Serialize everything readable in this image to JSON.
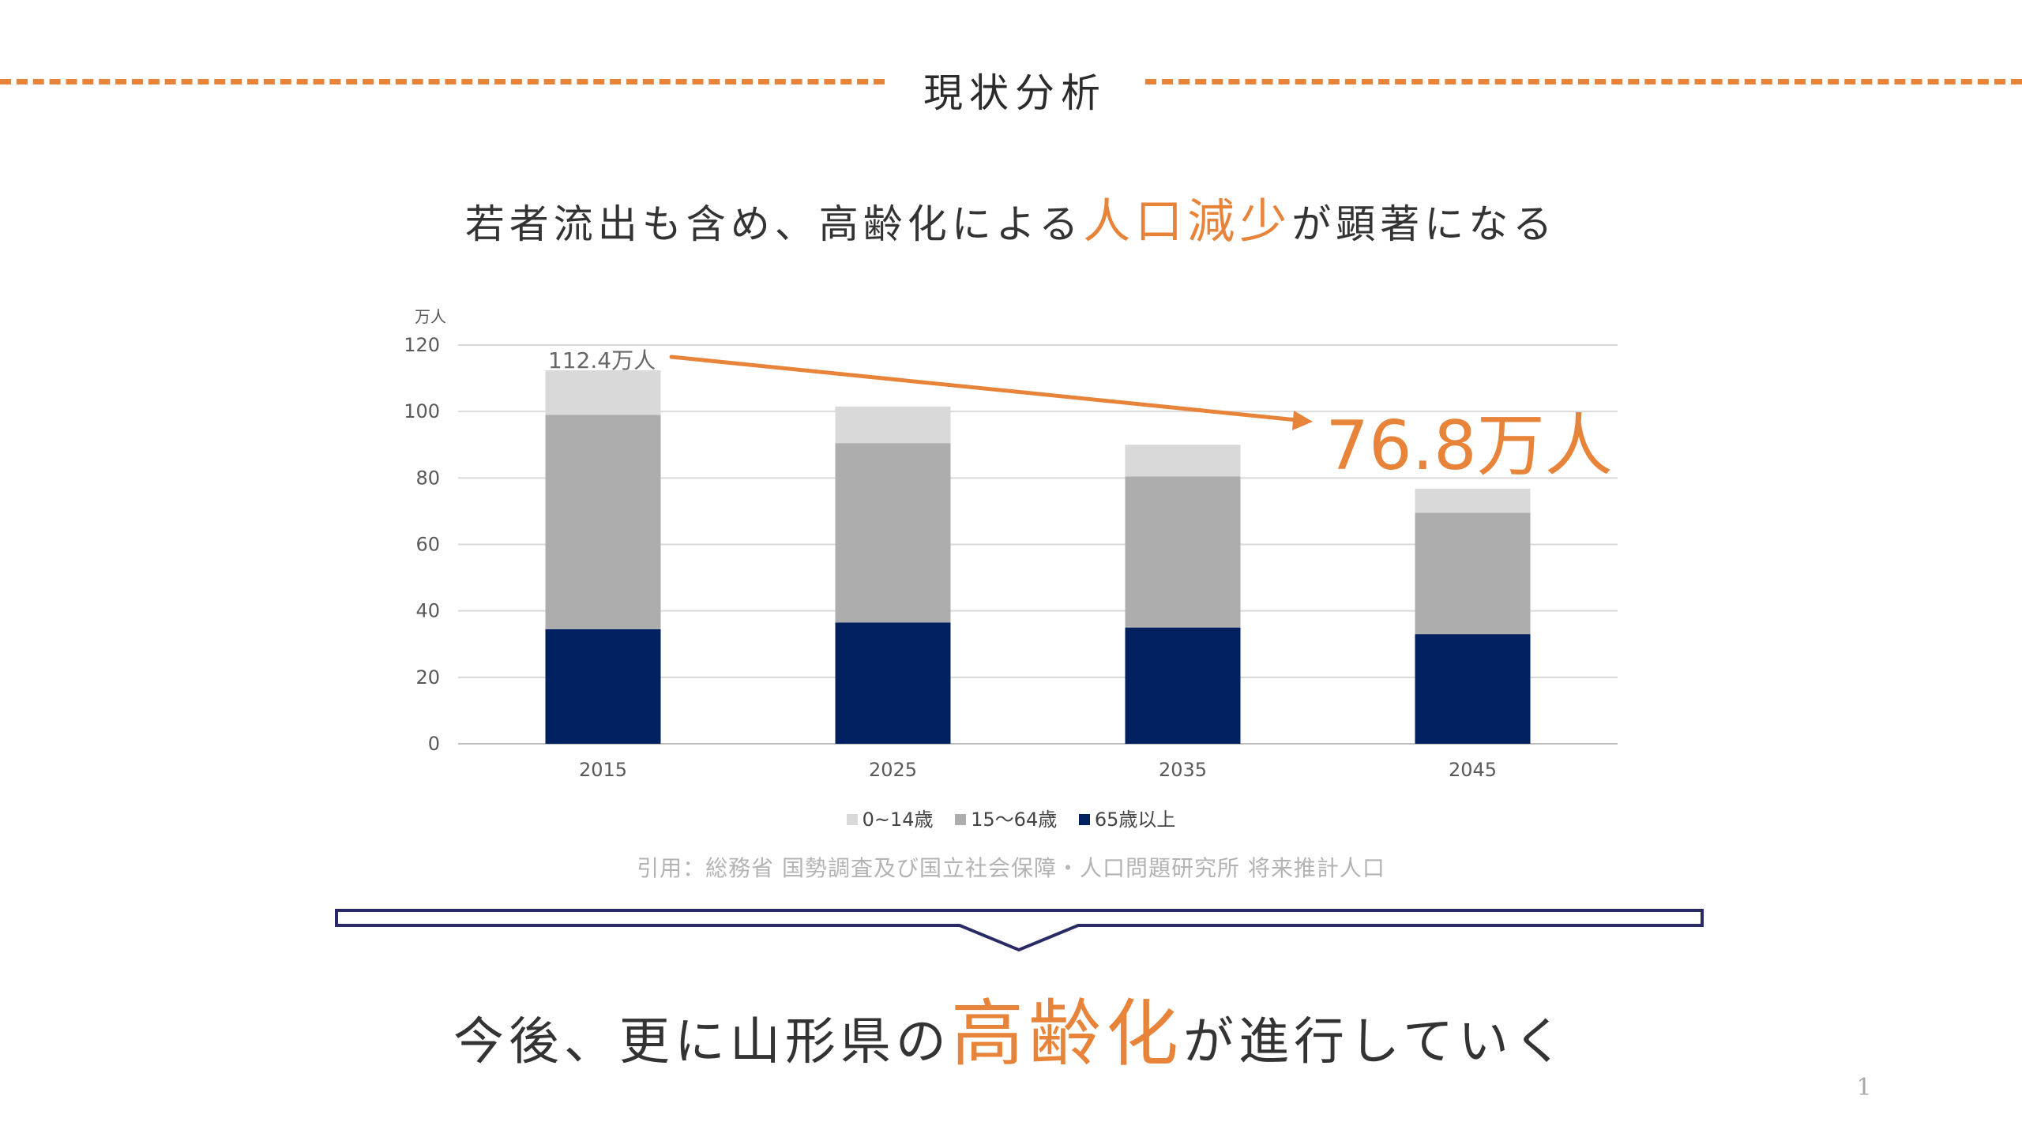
{
  "section_title": "現状分析",
  "headline_top": {
    "before": "若者流出も含め、高齢化による",
    "highlight": "人口減少",
    "after": "が顕著になる"
  },
  "headline_bottom": {
    "before": "今後、更に山形県の",
    "highlight": "高齢化",
    "after": "が進行していく"
  },
  "citation": "引用：総務省 国勢調査及び国立社会保障・人口問題研究所 将来推計人口",
  "page_number": "1",
  "colors": {
    "accent": "#e8833a",
    "navy": "#002060",
    "gray_mid": "#adadad",
    "gray_light": "#d9d9d9"
  },
  "chart_data": {
    "type": "bar",
    "stacked": true,
    "categories": [
      "2015",
      "2025",
      "2035",
      "2045"
    ],
    "series": [
      {
        "name": "65歳以上",
        "values": [
          34.5,
          36.5,
          35,
          33
        ],
        "color": "#002060"
      },
      {
        "name": "15〜64歳",
        "values": [
          64.5,
          54,
          45.5,
          36.5
        ],
        "color": "#adadad"
      },
      {
        "name": "0~14歳",
        "values": [
          13.4,
          11,
          9.5,
          7.3
        ],
        "color": "#d9d9d9"
      }
    ],
    "legend_order": [
      2,
      1,
      0
    ],
    "legend_position": "bottom",
    "ylabel": "万人",
    "ylim": [
      0,
      120
    ],
    "yticks": [
      0,
      20,
      40,
      60,
      80,
      100,
      120
    ],
    "grid": true,
    "annotations": {
      "start_total": "112.4万人",
      "end_total": "76.8万人"
    }
  }
}
